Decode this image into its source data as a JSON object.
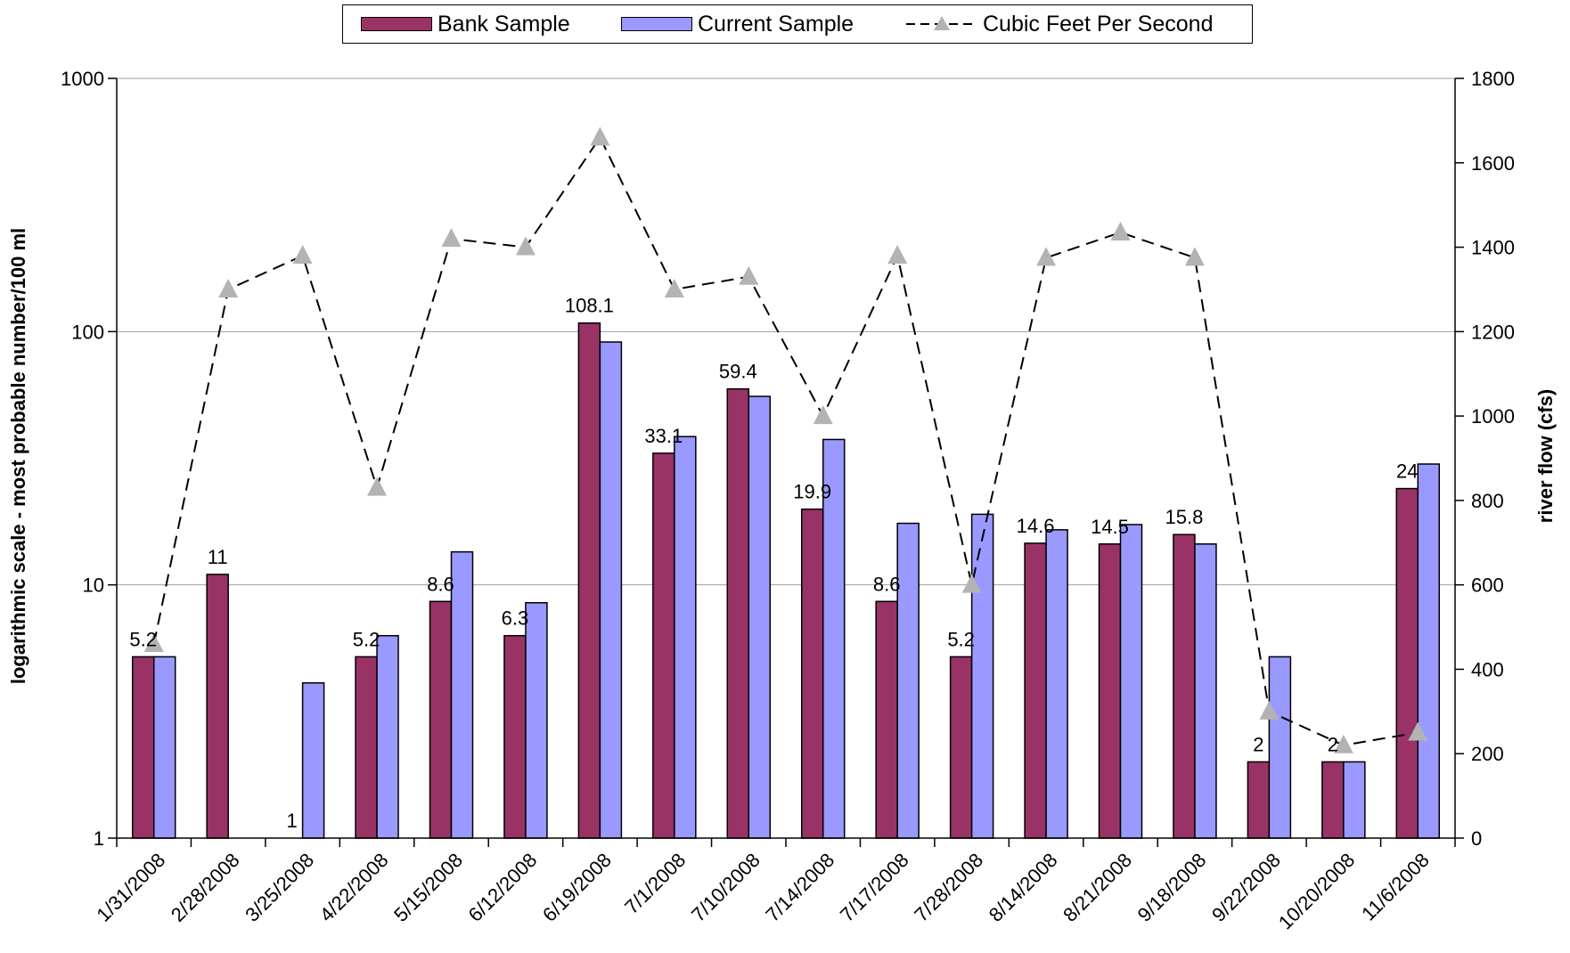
{
  "chart_data": {
    "type": "bar",
    "categories": [
      "1/31/2008",
      "2/28/2008",
      "3/25/2008",
      "4/22/2008",
      "5/15/2008",
      "6/12/2008",
      "6/19/2008",
      "7/1/2008",
      "7/10/2008",
      "7/14/2008",
      "7/17/2008",
      "7/28/2008",
      "8/14/2008",
      "8/21/2008",
      "9/18/2008",
      "9/22/2008",
      "10/20/2008",
      "11/6/2008"
    ],
    "series": [
      {
        "name": "Bank Sample",
        "kind": "bar",
        "axis": "left",
        "color": "#993366",
        "values": [
          5.2,
          11,
          1,
          5.2,
          8.6,
          6.3,
          108.1,
          33.1,
          59.4,
          19.9,
          8.6,
          5.2,
          14.6,
          14.5,
          15.8,
          2,
          2,
          24
        ]
      },
      {
        "name": "Current Sample",
        "kind": "bar",
        "axis": "left",
        "color": "#9999ff",
        "values": [
          5.2,
          1,
          4.1,
          6.3,
          13.5,
          8.5,
          91,
          38.5,
          55.5,
          37.5,
          17.5,
          19,
          16.5,
          17.3,
          14.5,
          5.2,
          2,
          30
        ]
      },
      {
        "name": "Cubic Feet Per Second",
        "kind": "line",
        "axis": "right",
        "color": "#000000",
        "marker_color": "#b3b3b3",
        "values": [
          460,
          1300,
          1380,
          830,
          1420,
          1400,
          1660,
          1300,
          1330,
          1000,
          1380,
          600,
          1375,
          1435,
          1375,
          300,
          220,
          250
        ]
      }
    ],
    "data_labels": [
      "5.2",
      "11",
      "1",
      "5.2",
      "8.6",
      "6.3",
      "108.1",
      "33.1",
      "59.4",
      "19.9",
      "8.6",
      "5.2",
      "14.6",
      "14.5",
      "15.8",
      "2",
      "2",
      "24"
    ],
    "ylabel": "logarithmic scale - most probable number/100 ml",
    "y2label": "river flow (cfs)",
    "yscale": "log",
    "ylim": [
      1,
      1000
    ],
    "yticks": [
      "1",
      "10",
      "100",
      "1000"
    ],
    "y2lim": [
      0,
      1800
    ],
    "y2ticks": [
      "0",
      "200",
      "400",
      "600",
      "800",
      "1000",
      "1200",
      "1400",
      "1600",
      "1800"
    ],
    "grid": true,
    "legend_position": "top"
  }
}
